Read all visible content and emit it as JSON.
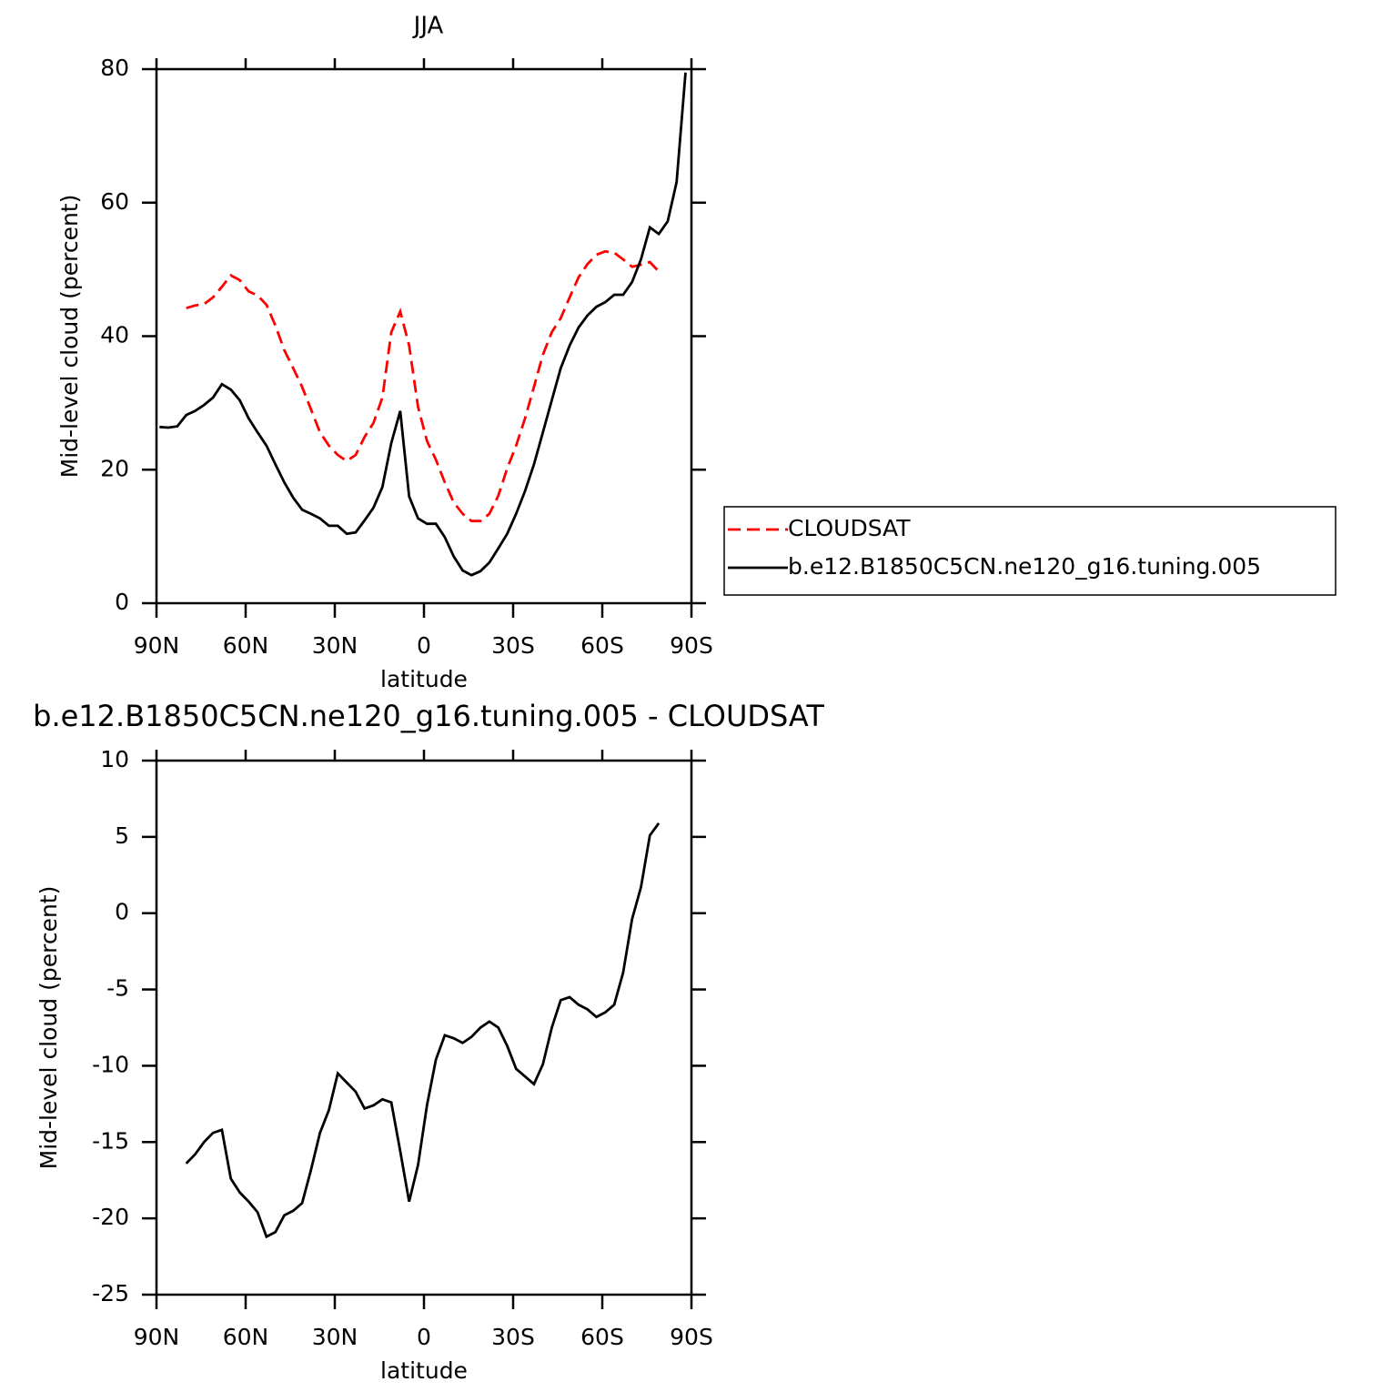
{
  "chart_data": [
    {
      "type": "line",
      "title": "JJA",
      "xlabel": "latitude",
      "ylabel": "Mid-level cloud (percent)",
      "x": [
        89,
        86,
        83,
        80,
        77,
        74,
        71,
        68,
        65,
        62,
        59,
        56,
        53,
        50,
        47,
        44,
        41,
        38,
        35,
        32,
        29,
        26,
        23,
        20,
        17,
        14,
        11,
        8,
        5,
        2,
        -1,
        -4,
        -7,
        -10,
        -13,
        -16,
        -19,
        -22,
        -25,
        -28,
        -31,
        -34,
        -37,
        -40,
        -43,
        -46,
        -49,
        -52,
        -55,
        -58,
        -61,
        -64,
        -67,
        -70,
        -73,
        -76,
        -79,
        -82,
        -85,
        -88
      ],
      "xlim": [
        90,
        -90
      ],
      "xticks": [
        {
          "value": 90,
          "label": "90N"
        },
        {
          "value": 60,
          "label": "60N"
        },
        {
          "value": 30,
          "label": "30N"
        },
        0,
        {
          "value": -30,
          "label": "30S"
        },
        {
          "value": -60,
          "label": "60S"
        },
        {
          "value": -90,
          "label": "90S"
        }
      ],
      "ylim": [
        0,
        80
      ],
      "yticks": [
        0,
        20,
        40,
        60,
        80
      ],
      "legend": "right",
      "series": [
        {
          "name": "CLOUDSAT",
          "color": "#ff0000",
          "dashed": true,
          "values": [
            null,
            null,
            null,
            44.2,
            44.6,
            44.8,
            45.8,
            47.4,
            49.1,
            48.4,
            46.7,
            46.1,
            44.7,
            41.6,
            37.9,
            35.2,
            32.4,
            29,
            25.6,
            23.6,
            22.2,
            21.3,
            22.2,
            24.9,
            27,
            30.8,
            40.6,
            43.7,
            38.6,
            29.4,
            24.3,
            21.5,
            18.1,
            15.1,
            13.4,
            12.3,
            12.3,
            13.4,
            16.1,
            20.2,
            23.6,
            27.7,
            32.4,
            37.2,
            40.6,
            42.7,
            45.8,
            48.8,
            50.8,
            52.2,
            52.7,
            52.5,
            51.5,
            50.4,
            50.7,
            51.1,
            49.7,
            null,
            null,
            null
          ]
        },
        {
          "name": "b.e12.B1850C5CN.ne120_g16.tuning.005",
          "color": "#000000",
          "dashed": false,
          "values": [
            26.4,
            26.3,
            26.5,
            28.2,
            28.8,
            29.7,
            30.8,
            32.8,
            32,
            30.4,
            27.7,
            25.6,
            23.6,
            20.8,
            18.1,
            15.8,
            14,
            13.4,
            12.7,
            11.6,
            11.6,
            10.4,
            10.6,
            12.4,
            14.3,
            17.4,
            24,
            28.8,
            16,
            12.7,
            11.9,
            11.9,
            9.9,
            7,
            4.9,
            4.2,
            4.8,
            6.1,
            8.2,
            10.4,
            13.4,
            16.8,
            20.8,
            25.6,
            30.4,
            35.2,
            38.6,
            41.3,
            43.1,
            44.4,
            45.1,
            46.2,
            46.2,
            48.1,
            51.5,
            56.3,
            55.3,
            57.2,
            63.1,
            79.5
          ]
        }
      ]
    },
    {
      "type": "line",
      "title": "b.e12.B1850C5CN.ne120_g16.tuning.005 - CLOUDSAT",
      "xlabel": "latitude",
      "ylabel": "Mid-level cloud (percent)",
      "x": [
        89,
        86,
        83,
        80,
        77,
        74,
        71,
        68,
        65,
        62,
        59,
        56,
        53,
        50,
        47,
        44,
        41,
        38,
        35,
        32,
        29,
        26,
        23,
        20,
        17,
        14,
        11,
        8,
        5,
        2,
        -1,
        -4,
        -7,
        -10,
        -13,
        -16,
        -19,
        -22,
        -25,
        -28,
        -31,
        -34,
        -37,
        -40,
        -43,
        -46,
        -49,
        -52,
        -55,
        -58,
        -61,
        -64,
        -67,
        -70,
        -73,
        -76,
        -79,
        -82,
        -85,
        -88
      ],
      "xlim": [
        90,
        -90
      ],
      "xticks": [
        {
          "value": 90,
          "label": "90N"
        },
        {
          "value": 60,
          "label": "60N"
        },
        {
          "value": 30,
          "label": "30N"
        },
        0,
        {
          "value": -30,
          "label": "30S"
        },
        {
          "value": -60,
          "label": "60S"
        },
        {
          "value": -90,
          "label": "90S"
        }
      ],
      "ylim": [
        -25,
        10
      ],
      "yticks": [
        -25,
        -20,
        -15,
        -10,
        -5,
        0,
        5,
        10
      ],
      "series": [
        {
          "color": "#000000",
          "dashed": false,
          "values": [
            null,
            null,
            null,
            -16.4,
            -15.8,
            -15,
            -14.4,
            -14.2,
            -17.4,
            -18.3,
            -18.9,
            -19.6,
            -21.2,
            -20.9,
            -19.8,
            -19.5,
            -19,
            -16.8,
            -14.4,
            -12.9,
            -10.5,
            -11.1,
            -11.7,
            -12.8,
            -12.6,
            -12.2,
            -12.4,
            -15.6,
            -18.9,
            -16.5,
            -12.6,
            -9.6,
            -8,
            -8.2,
            -8.5,
            -8.1,
            -7.5,
            -7.1,
            -7.5,
            -8.7,
            -10.2,
            -10.7,
            -11.2,
            -9.9,
            -7.5,
            -5.7,
            -5.5,
            -6,
            -6.3,
            -6.8,
            -6.5,
            -6,
            -3.9,
            -0.4,
            1.7,
            5.1,
            5.9,
            null,
            null,
            null
          ]
        }
      ]
    }
  ]
}
